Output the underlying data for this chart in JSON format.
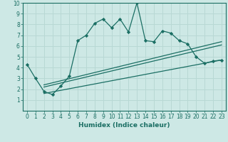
{
  "xlabel": "Humidex (Indice chaleur)",
  "bg_color": "#cde8e5",
  "grid_color": "#b8d8d4",
  "line_color": "#1a6e63",
  "spine_color": "#1a6e63",
  "xlim": [
    -0.5,
    23.5
  ],
  "ylim": [
    0,
    10
  ],
  "xticks": [
    0,
    1,
    2,
    3,
    4,
    5,
    6,
    7,
    8,
    9,
    10,
    11,
    12,
    13,
    14,
    15,
    16,
    17,
    18,
    19,
    20,
    21,
    22,
    23
  ],
  "yticks": [
    1,
    2,
    3,
    4,
    5,
    6,
    7,
    8,
    9,
    10
  ],
  "main_x": [
    0,
    1,
    2,
    3,
    4,
    5,
    6,
    7,
    8,
    9,
    10,
    11,
    12,
    13,
    14,
    15,
    16,
    17,
    18,
    19,
    20,
    21,
    22,
    23
  ],
  "main_y": [
    4.3,
    3.0,
    1.8,
    1.5,
    2.3,
    3.2,
    6.5,
    7.0,
    8.1,
    8.5,
    7.7,
    8.5,
    7.3,
    10.0,
    6.5,
    6.4,
    7.4,
    7.2,
    6.5,
    6.2,
    5.0,
    4.4,
    4.6,
    4.7
  ],
  "line1_x": [
    2,
    23
  ],
  "line1_y": [
    1.6,
    4.7
  ],
  "line2_x": [
    2,
    23
  ],
  "line2_y": [
    2.2,
    6.1
  ],
  "line3_x": [
    2,
    23
  ],
  "line3_y": [
    2.4,
    6.4
  ],
  "tick_fontsize": 5.5,
  "xlabel_fontsize": 6.5
}
